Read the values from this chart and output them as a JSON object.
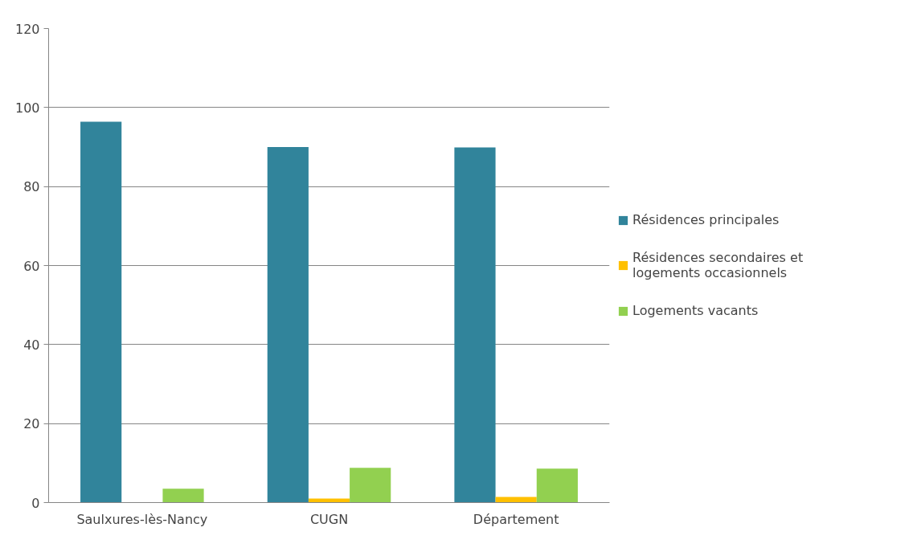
{
  "chart_data": {
    "type": "bar",
    "categories": [
      "Saulxures-lès-Nancy",
      "CUGN",
      "Département"
    ],
    "series": [
      {
        "name": "Résidences principales",
        "color": "#31849b",
        "values": [
          96.4,
          90.0,
          89.9
        ]
      },
      {
        "name": "Résidences secondaires et logements occasionnels",
        "color": "#ffc000",
        "values": [
          0,
          1.0,
          1.4
        ]
      },
      {
        "name": "Logements vacants",
        "color": "#92d050",
        "values": [
          3.5,
          8.8,
          8.6
        ]
      }
    ],
    "ylim": [
      0,
      120
    ],
    "yticks": [
      0,
      20,
      40,
      60,
      80,
      100,
      120
    ],
    "grid": "y",
    "legend": "right"
  }
}
